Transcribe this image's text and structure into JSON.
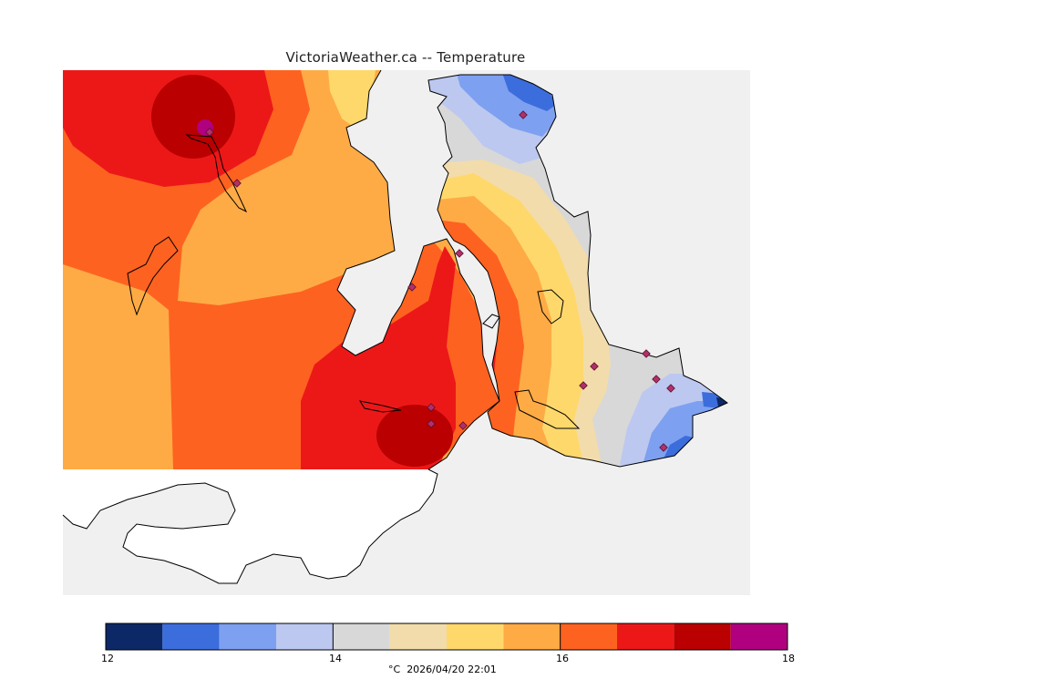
{
  "header": {
    "title": "VictoriaWeather.ca -- Temperature"
  },
  "colors": {
    "land_gray": "#d8d8d8",
    "water": "#f0f0f0",
    "usa_land": "#ffffff",
    "coast": "#000000",
    "station_marker": "#b0306a"
  },
  "legend": {
    "unit": "°C",
    "timestamp": "2026/04/20 22:01",
    "tick_labels": [
      "12",
      "14",
      "16",
      "18"
    ],
    "bins": [
      {
        "low": 12.0,
        "high": 12.5,
        "color": "#0d2866"
      },
      {
        "low": 12.5,
        "high": 13.0,
        "color": "#3c6ddc"
      },
      {
        "low": 13.0,
        "high": 13.5,
        "color": "#7ea0f0"
      },
      {
        "low": 13.5,
        "high": 14.0,
        "color": "#bcc8f0"
      },
      {
        "low": 14.0,
        "high": 14.5,
        "color": "#d8d8d8"
      },
      {
        "low": 14.5,
        "high": 15.0,
        "color": "#f2dcab"
      },
      {
        "low": 15.0,
        "high": 15.5,
        "color": "#ffd86c"
      },
      {
        "low": 15.5,
        "high": 16.0,
        "color": "#feab45"
      },
      {
        "low": 16.0,
        "high": 16.5,
        "color": "#fe6220"
      },
      {
        "low": 16.5,
        "high": 17.0,
        "color": "#ec1818"
      },
      {
        "low": 17.0,
        "high": 17.5,
        "color": "#ba0000"
      },
      {
        "low": 17.5,
        "high": 18.0,
        "color": "#b00080"
      }
    ]
  }
}
